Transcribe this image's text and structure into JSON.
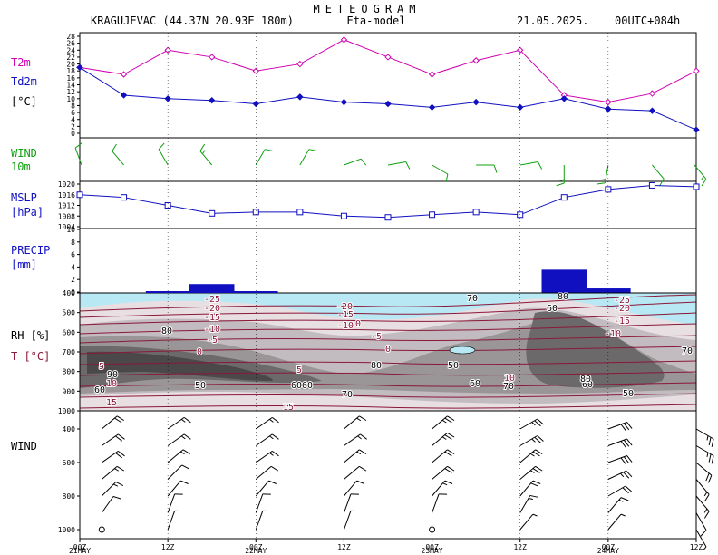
{
  "header": {
    "title": "METEOGRAM",
    "location": "KRAGUJEVAC (44.37N 20.93E  180m)",
    "model": "Eta-model",
    "date": "21.05.2025.",
    "run": "00UTC+084h"
  },
  "labels": {
    "t2m": "T2m",
    "td2m": "Td2m",
    "temp_unit": "[°C]",
    "wind10_a": "WIND",
    "wind10_b": "10m",
    "mslp_a": "MSLP",
    "mslp_b": "[hPa]",
    "precip_a": "PRECIP",
    "precip_b": "[mm]",
    "rh": "RH [%]",
    "t_prof": "T [°C]",
    "wind_prof": "WIND"
  },
  "colors": {
    "t2m": "#d000b0",
    "td2m": "#1010c0",
    "wind10": "#10a010",
    "mslp": "#1010c0",
    "precip": "#1010c0",
    "temp_contour": "#8a1838",
    "rh_label": "#8a1838",
    "cold_fill": "#b8e8f4"
  },
  "time_axis": {
    "ticks": [
      "00Z",
      "12Z",
      "00Z",
      "12Z",
      "00Z",
      "12Z",
      "00Z",
      "12Z"
    ],
    "days": [
      "21MAY",
      "22MAY",
      "23MAY",
      "24MAY"
    ]
  },
  "chart_data": [
    {
      "type": "line",
      "title": "T2m / Td2m",
      "ylabel": "[°C]",
      "ylim": [
        0,
        28
      ],
      "yticks": [
        0,
        2,
        4,
        6,
        8,
        10,
        12,
        14,
        16,
        18,
        20,
        22,
        24,
        26,
        28
      ],
      "x_hours": [
        0,
        6,
        12,
        18,
        24,
        30,
        36,
        42,
        48,
        54,
        60,
        66,
        72,
        78,
        84
      ],
      "series": [
        {
          "name": "T2m",
          "values": [
            19,
            17,
            24,
            22,
            18,
            20,
            27,
            22,
            17,
            21,
            24,
            11,
            9,
            11.5,
            18
          ]
        },
        {
          "name": "Td2m",
          "values": [
            19,
            11,
            10,
            9.5,
            8.5,
            10.5,
            9,
            8.5,
            7.5,
            9,
            7.5,
            10,
            7,
            6.5,
            1
          ]
        }
      ]
    },
    {
      "type": "line",
      "title": "MSLP",
      "ylabel": "[hPa]",
      "ylim": [
        1004,
        1020
      ],
      "yticks": [
        1004,
        1008,
        1012,
        1016,
        1020
      ],
      "x_hours": [
        0,
        6,
        12,
        18,
        24,
        30,
        36,
        42,
        48,
        54,
        60,
        66,
        72,
        78,
        84
      ],
      "series": [
        {
          "name": "MSLP",
          "values": [
            1016,
            1015,
            1012,
            1009,
            1009.5,
            1009.5,
            1008,
            1007.5,
            1008.5,
            1009.5,
            1008.5,
            1015,
            1018,
            1019.5,
            1019
          ]
        }
      ]
    },
    {
      "type": "bar",
      "title": "PRECIP",
      "ylabel": "[mm]",
      "ylim": [
        0,
        10
      ],
      "yticks": [
        0,
        2,
        4,
        6,
        8,
        10
      ],
      "intervals_h": [
        [
          15,
          21
        ],
        [
          63,
          69
        ],
        [
          69,
          75
        ]
      ],
      "values": [
        1.2,
        3.5,
        0.5
      ]
    },
    {
      "type": "heatmap",
      "title": "RH [%] / T [°C]",
      "ylim_hPa": [
        1000,
        400
      ],
      "yticks": [
        400,
        500,
        600,
        700,
        800,
        900,
        1000
      ],
      "rh_contour_labels": [
        "80",
        "90",
        "60",
        "50",
        "70",
        "60",
        "80",
        "50",
        "60",
        "70",
        "60",
        "50",
        "70",
        "80",
        "60",
        "80",
        "70",
        "60"
      ],
      "temp_contour_labels": [
        "-25",
        "-20",
        "-15",
        "-10",
        "-5",
        "0",
        "5",
        "10",
        "15",
        "-20",
        "-15",
        "-10",
        "0",
        "-5",
        "0",
        "5",
        "10",
        "15",
        "-25",
        "-20",
        "-15",
        "-10"
      ]
    }
  ],
  "wind10m_barbs": [
    {
      "h": 0,
      "dir": 160,
      "spd": 10
    },
    {
      "h": 6,
      "dir": 140,
      "spd": 10
    },
    {
      "h": 12,
      "dir": 150,
      "spd": 10
    },
    {
      "h": 18,
      "dir": 140,
      "spd": 15
    },
    {
      "h": 24,
      "dir": 210,
      "spd": 10
    },
    {
      "h": 30,
      "dir": 210,
      "spd": 10
    },
    {
      "h": 36,
      "dir": 250,
      "spd": 10
    },
    {
      "h": 42,
      "dir": 260,
      "spd": 10
    },
    {
      "h": 48,
      "dir": 300,
      "spd": 10
    },
    {
      "h": 54,
      "dir": 270,
      "spd": 10
    },
    {
      "h": 60,
      "dir": 260,
      "spd": 10
    },
    {
      "h": 66,
      "dir": 0,
      "spd": 15
    },
    {
      "h": 72,
      "dir": 10,
      "spd": 15
    },
    {
      "h": 78,
      "dir": 320,
      "spd": 10
    },
    {
      "h": 84,
      "dir": 320,
      "spd": 15
    }
  ],
  "wind_profile_levels": [
    400,
    500,
    600,
    700,
    800,
    900,
    1000
  ],
  "wind_profile_barbs": [
    {
      "h": 3,
      "dir": [
        230,
        235,
        235,
        230,
        225,
        215,
        0
      ],
      "spd": [
        20,
        20,
        20,
        15,
        15,
        10,
        0
      ]
    },
    {
      "h": 12,
      "dir": [
        235,
        235,
        230,
        225,
        220,
        200,
        200
      ],
      "spd": [
        15,
        15,
        15,
        10,
        10,
        10,
        5
      ]
    },
    {
      "h": 24,
      "dir": [
        235,
        235,
        235,
        230,
        220,
        200,
        200
      ],
      "spd": [
        15,
        15,
        15,
        10,
        10,
        10,
        5
      ]
    },
    {
      "h": 36,
      "dir": [
        230,
        235,
        230,
        230,
        220,
        200,
        200
      ],
      "spd": [
        15,
        15,
        15,
        10,
        10,
        10,
        5
      ]
    },
    {
      "h": 48,
      "dir": [
        230,
        230,
        230,
        230,
        220,
        200,
        0
      ],
      "spd": [
        25,
        25,
        20,
        20,
        15,
        10,
        0
      ]
    },
    {
      "h": 60,
      "dir": [
        240,
        240,
        230,
        230,
        220,
        210,
        220
      ],
      "spd": [
        25,
        25,
        25,
        25,
        20,
        15,
        5
      ]
    },
    {
      "h": 72,
      "dir": [
        250,
        250,
        250,
        245,
        240,
        220,
        220
      ],
      "spd": [
        30,
        30,
        30,
        25,
        20,
        15,
        5
      ]
    },
    {
      "h": 84,
      "dir": [
        300,
        300,
        310,
        320,
        320,
        330,
        330
      ],
      "spd": [
        25,
        25,
        20,
        15,
        15,
        10,
        5
      ]
    }
  ]
}
